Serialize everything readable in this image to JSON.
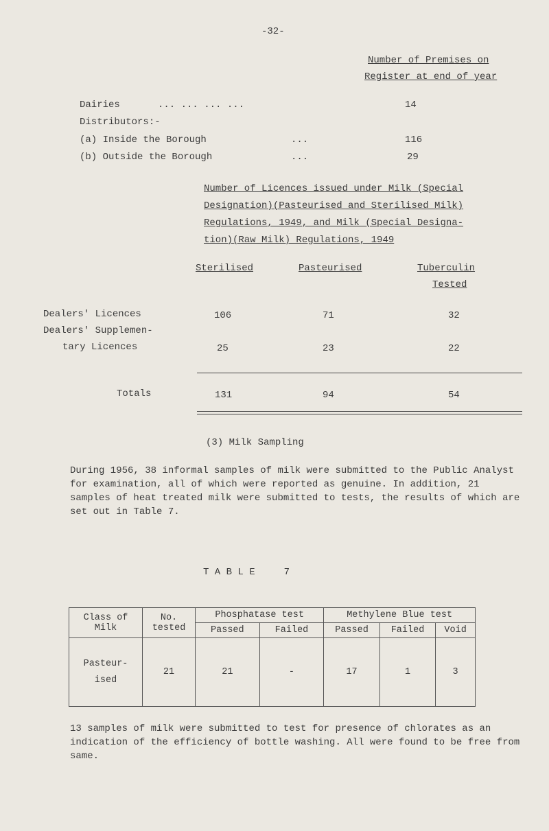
{
  "page_number": "-32-",
  "premises": {
    "header_line1": "Number of Premises on",
    "header_line2": "Register at end of year",
    "rows": [
      {
        "label": "Dairies",
        "leader": "... ... ... ...",
        "value": "14"
      },
      {
        "label": "Distributors:-"
      },
      {
        "label": "(a) Inside the Borough",
        "leader": "...",
        "value": "116"
      },
      {
        "label": "(b) Outside the Borough",
        "leader": "...",
        "value": "29"
      }
    ]
  },
  "licences": {
    "heading_lines": [
      "Number of Licences issued under Milk (Special",
      "Designation)(Pasteurised and Sterilised Milk)",
      "Regulations, 1949, and Milk (Special Designa-",
      "tion)(Raw Milk) Regulations, 1949"
    ],
    "columns": [
      "Sterilised",
      "Pasteurised",
      "Tuberculin",
      "Tested"
    ],
    "rows": [
      {
        "label": "Dealers' Licences",
        "values": [
          "106",
          "71",
          "32"
        ]
      },
      {
        "label_line1": "Dealers' Supplemen-",
        "label_line2": "tary Licences",
        "values": [
          "25",
          "23",
          "22"
        ]
      }
    ],
    "totals": {
      "label": "Totals",
      "values": [
        "131",
        "94",
        "54"
      ]
    }
  },
  "section_title": "(3) Milk Sampling",
  "paragraph1": "During 1956, 38 informal samples of milk were submitted to the Public Analyst for examination, all of which were reported as genuine. In addition, 21 samples of heat treated milk were submitted to tests, the results of which are set out in Table 7.",
  "table7": {
    "title": "T A B L E     7",
    "headers": {
      "class": "Class of Milk",
      "no": "No. tested",
      "phosphatase": "Phosphatase test",
      "methylene": "Methylene Blue test",
      "sub": [
        "Passed",
        "Failed",
        "Passed",
        "Failed",
        "Void"
      ]
    },
    "row": {
      "class": "Pasteur- ised",
      "values": [
        "21",
        "21",
        "-",
        "17",
        "1",
        "3"
      ]
    }
  },
  "paragraph2": "13 samples of milk were submitted to test for presence of chlorates as an indication of the efficiency of bottle washing. All were found to be free from same."
}
